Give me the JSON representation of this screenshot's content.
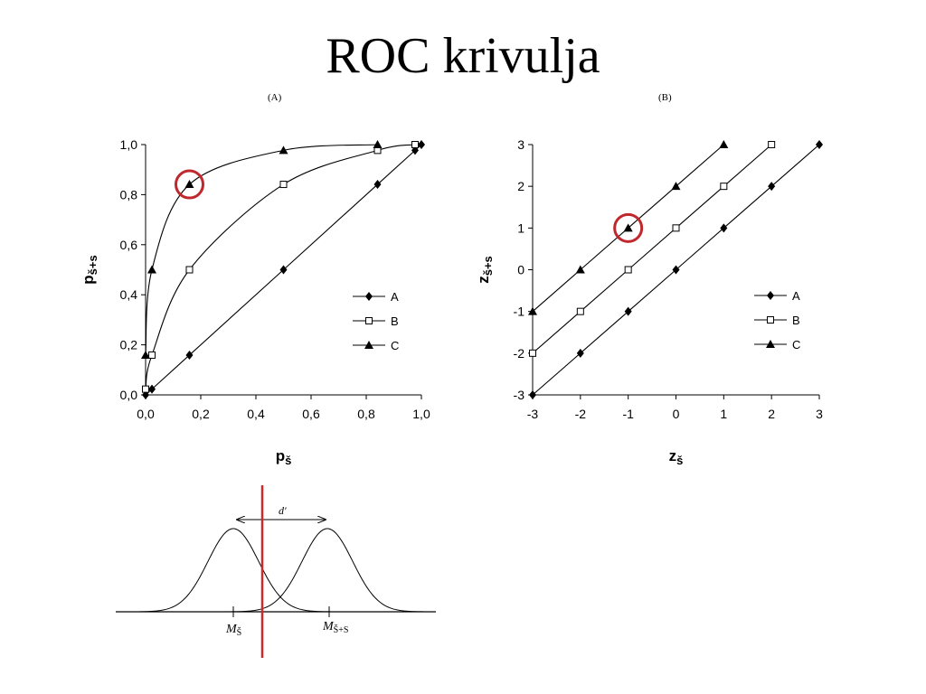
{
  "slide": {
    "title": "ROC krivulja"
  },
  "chart_data": [
    {
      "id": "A",
      "panel_label": "(A)",
      "type": "line",
      "xlabel": "pš",
      "ylabel": "pš+s",
      "xlim": [
        0,
        1
      ],
      "ylim": [
        0,
        1
      ],
      "xticks": [
        "0,0",
        "0,2",
        "0,4",
        "0,6",
        "0,8",
        "1,0"
      ],
      "yticks": [
        "0,0",
        "0,2",
        "0,4",
        "0,6",
        "0,8",
        "1,0"
      ],
      "grid": false,
      "legend_position": "right-middle",
      "series": [
        {
          "name": "A",
          "marker": "diamond",
          "x": [
            0.0,
            0.023,
            0.159,
            0.5,
            0.841,
            0.977,
            1.0
          ],
          "y": [
            0.0,
            0.023,
            0.159,
            0.5,
            0.841,
            0.977,
            1.0
          ]
        },
        {
          "name": "B",
          "marker": "square-open",
          "x": [
            0.0,
            0.023,
            0.159,
            0.5,
            0.841,
            0.977
          ],
          "y": [
            0.023,
            0.159,
            0.5,
            0.841,
            0.977,
            1.0
          ]
        },
        {
          "name": "C",
          "marker": "triangle",
          "x": [
            0.0,
            0.023,
            0.159,
            0.5,
            0.841
          ],
          "y": [
            0.159,
            0.5,
            0.841,
            0.977,
            1.0
          ]
        }
      ],
      "highlight": {
        "series": "C",
        "x": 0.159,
        "y": 0.841,
        "color": "#c0282d"
      }
    },
    {
      "id": "B",
      "panel_label": "(B)",
      "type": "line",
      "xlabel": "zš",
      "ylabel": "zš+s",
      "xlim": [
        -3,
        3
      ],
      "ylim": [
        -3,
        3
      ],
      "xticks": [
        "-3",
        "-2",
        "-1",
        "0",
        "1",
        "2",
        "3"
      ],
      "yticks": [
        "-3",
        "-2",
        "-1",
        "0",
        "1",
        "2",
        "3"
      ],
      "grid": false,
      "legend_position": "right-middle",
      "series": [
        {
          "name": "A",
          "marker": "diamond",
          "x": [
            -3,
            -2,
            -1,
            0,
            1,
            2,
            3
          ],
          "y": [
            -3,
            -2,
            -1,
            0,
            1,
            2,
            3
          ]
        },
        {
          "name": "B",
          "marker": "square-open",
          "x": [
            -3,
            -2,
            -1,
            0,
            1,
            2
          ],
          "y": [
            -2,
            -1,
            0,
            1,
            2,
            3
          ]
        },
        {
          "name": "C",
          "marker": "triangle",
          "x": [
            -3,
            -2,
            -1,
            0,
            1
          ],
          "y": [
            -1,
            0,
            1,
            2,
            3
          ]
        }
      ],
      "highlight": {
        "series": "C",
        "x": -1,
        "y": 1,
        "color": "#c0282d"
      }
    }
  ],
  "distribution_diagram": {
    "d_label": "d'",
    "mean_noise_label": "M",
    "mean_noise_sub": "Š",
    "mean_signal_label": "M",
    "mean_signal_sub": "Š+S",
    "criterion_color": "#d0282d"
  }
}
